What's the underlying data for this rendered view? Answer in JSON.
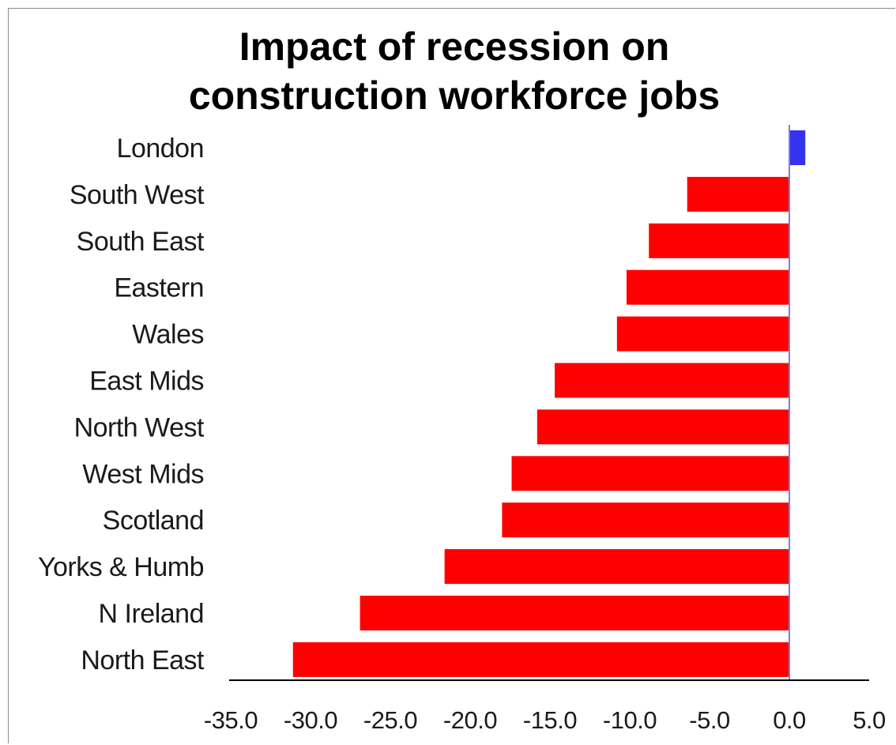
{
  "chart_data": {
    "type": "bar",
    "orientation": "horizontal",
    "title": "Impact of recession on construction workforce jobs",
    "title_lines": [
      "Impact of recession on",
      "construction workforce jobs"
    ],
    "xlabel": "",
    "ylabel": "",
    "xlim": [
      -35,
      5
    ],
    "xticks": [
      "-35.0",
      "-30.0",
      "-25.0",
      "-20.0",
      "-15.0",
      "-10.0",
      "-5.0",
      "0.0",
      "5.0"
    ],
    "grid": false,
    "categories": [
      "London",
      "South West",
      "South East",
      "Eastern",
      "Wales",
      "East Mids",
      "North West",
      "West Mids",
      "Scotland",
      "Yorks & Humb",
      "N Ireland",
      "North East"
    ],
    "values": [
      1.0,
      -6.4,
      -8.8,
      -10.2,
      -10.8,
      -14.7,
      -15.8,
      -17.4,
      -18.0,
      -21.6,
      -26.9,
      -31.1
    ],
    "colors": {
      "positive": "#3333ee",
      "negative": "#ff0000",
      "axis": "#8080cc",
      "baseline": "#000000"
    }
  }
}
